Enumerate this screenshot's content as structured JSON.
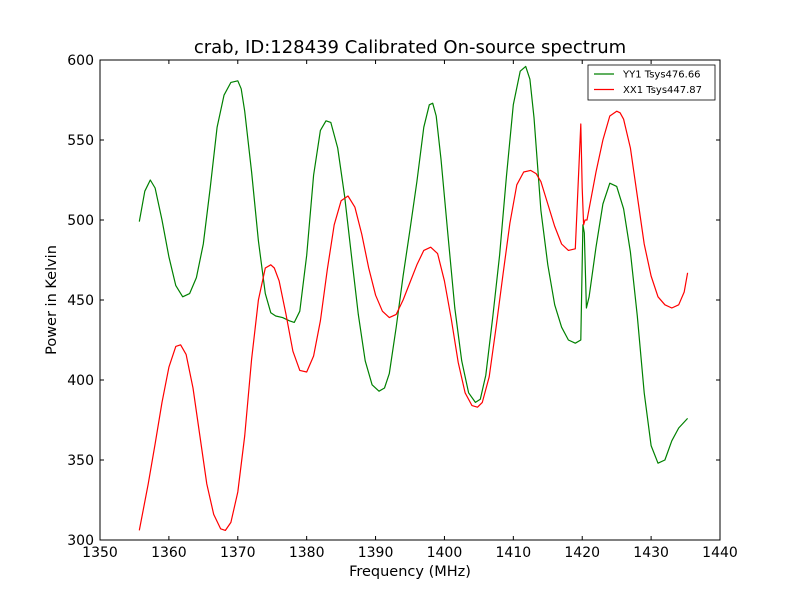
{
  "chart_data": {
    "type": "line",
    "title": "crab, ID:128439 Calibrated On-source spectrum",
    "xlabel": "Frequency (MHz)",
    "ylabel": "Power in Kelvin",
    "xlim": [
      1350,
      1440
    ],
    "ylim": [
      300,
      600
    ],
    "xticks": [
      1350,
      1360,
      1370,
      1380,
      1390,
      1400,
      1410,
      1420,
      1430,
      1440
    ],
    "yticks": [
      300,
      350,
      400,
      450,
      500,
      550,
      600
    ],
    "xtick_labels": [
      "1350",
      "1360",
      "1370",
      "1380",
      "1390",
      "1400",
      "1410",
      "1420",
      "1430",
      "1440"
    ],
    "ytick_labels": [
      "300",
      "350",
      "400",
      "450",
      "500",
      "550",
      "600"
    ],
    "grid": false,
    "legend_position": "top-right",
    "series": [
      {
        "name": "YY1 Tsys476.66",
        "color": "#008000",
        "x": [
          1355.7,
          1356.5,
          1357.3,
          1358.0,
          1359.0,
          1360.0,
          1361.0,
          1362.0,
          1363.0,
          1364.0,
          1365.0,
          1366.0,
          1367.0,
          1368.0,
          1369.0,
          1370.0,
          1370.5,
          1371.0,
          1372.0,
          1373.0,
          1374.0,
          1374.8,
          1375.5,
          1376.5,
          1377.5,
          1378.2,
          1379.0,
          1380.0,
          1381.0,
          1382.0,
          1382.8,
          1383.5,
          1384.5,
          1385.5,
          1386.5,
          1387.5,
          1388.5,
          1389.5,
          1390.5,
          1391.3,
          1392.0,
          1393.0,
          1394.0,
          1395.0,
          1396.0,
          1397.0,
          1397.8,
          1398.3,
          1398.8,
          1399.5,
          1400.5,
          1401.5,
          1402.5,
          1403.5,
          1404.5,
          1405.2,
          1406.0,
          1407.0,
          1408.0,
          1409.0,
          1410.0,
          1411.0,
          1411.8,
          1412.4,
          1413.0,
          1414.0,
          1415.0,
          1416.0,
          1417.0,
          1418.0,
          1419.0,
          1419.8,
          1420.1,
          1420.3,
          1420.6,
          1421.0,
          1422.0,
          1423.0,
          1424.0,
          1425.0,
          1426.0,
          1427.0,
          1428.0,
          1429.0,
          1430.0,
          1431.0,
          1432.0,
          1433.0,
          1434.0,
          1435.3
        ],
        "values": [
          499,
          518,
          525,
          520,
          500,
          477,
          459,
          452,
          454,
          464,
          485,
          520,
          558,
          578,
          586,
          587,
          582,
          568,
          530,
          487,
          454,
          442,
          440,
          439,
          437,
          436,
          443,
          478,
          528,
          556,
          562,
          561,
          545,
          515,
          478,
          441,
          412,
          397,
          393,
          395,
          404,
          433,
          465,
          494,
          524,
          558,
          572,
          573,
          565,
          538,
          491,
          445,
          412,
          392,
          386,
          388,
          403,
          439,
          478,
          527,
          572,
          593,
          596,
          588,
          564,
          506,
          472,
          447,
          433,
          425,
          423,
          425,
          497,
          492,
          445,
          452,
          483,
          510,
          523,
          521,
          507,
          480,
          440,
          392,
          359,
          348,
          350,
          362,
          370,
          376
        ]
      },
      {
        "name": "XX1 Tsys447.87",
        "color": "#ff0000",
        "x": [
          1355.7,
          1357.0,
          1358.0,
          1359.0,
          1360.0,
          1361.0,
          1361.7,
          1362.5,
          1363.5,
          1364.5,
          1365.5,
          1366.5,
          1367.5,
          1368.2,
          1369.0,
          1370.0,
          1371.0,
          1372.0,
          1373.0,
          1374.0,
          1374.8,
          1375.3,
          1376.0,
          1377.0,
          1378.0,
          1379.0,
          1380.0,
          1381.0,
          1382.0,
          1383.0,
          1384.0,
          1385.0,
          1386.0,
          1387.0,
          1388.0,
          1389.0,
          1390.0,
          1391.0,
          1392.0,
          1393.0,
          1394.0,
          1395.0,
          1396.0,
          1397.0,
          1398.0,
          1399.0,
          1400.0,
          1401.0,
          1402.0,
          1403.0,
          1404.0,
          1404.8,
          1405.5,
          1406.5,
          1407.5,
          1408.5,
          1409.5,
          1410.5,
          1411.5,
          1412.5,
          1413.3,
          1414.0,
          1415.0,
          1416.0,
          1417.0,
          1418.0,
          1419.0,
          1419.8,
          1420.0,
          1420.2,
          1420.4,
          1420.7,
          1421.0,
          1422.0,
          1423.0,
          1424.0,
          1425.0,
          1425.5,
          1426.0,
          1427.0,
          1428.0,
          1429.0,
          1430.0,
          1431.0,
          1432.0,
          1433.0,
          1434.0,
          1434.8,
          1435.3
        ],
        "values": [
          306,
          335,
          360,
          386,
          408,
          421,
          422,
          416,
          395,
          365,
          335,
          316,
          307,
          306,
          311,
          330,
          365,
          413,
          450,
          470,
          472,
          470,
          462,
          441,
          418,
          406,
          405,
          415,
          437,
          469,
          497,
          512,
          515,
          508,
          491,
          470,
          453,
          443,
          439,
          441,
          450,
          461,
          472,
          481,
          483,
          479,
          462,
          438,
          411,
          392,
          384,
          383,
          386,
          402,
          433,
          466,
          498,
          522,
          530,
          531,
          529,
          524,
          510,
          496,
          485,
          481,
          482,
          560,
          520,
          497,
          500,
          500,
          507,
          530,
          550,
          565,
          568,
          567,
          563,
          545,
          515,
          485,
          465,
          452,
          447,
          445,
          447,
          455,
          467
        ]
      }
    ]
  }
}
